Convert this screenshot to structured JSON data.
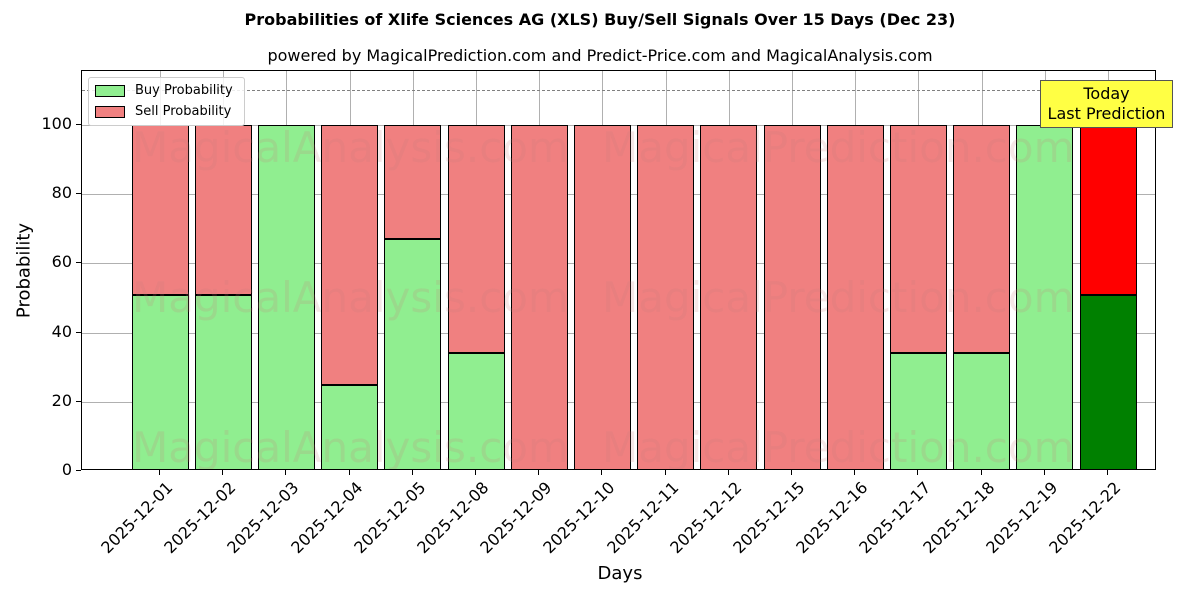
{
  "header": {
    "title": "Probabilities of Xlife Sciences AG (XLS) Buy/Sell Signals Over 15 Days (Dec 23)",
    "subtitle": "powered by MagicalPrediction.com and Predict-Price.com and MagicalAnalysis.com"
  },
  "legend": {
    "buy": "Buy Probability",
    "sell": "Sell Probability"
  },
  "annotation": {
    "line1": "Today",
    "line2": "Last Prediction"
  },
  "watermarks": [
    "MagicalAnalysis.com",
    "MagicalPrediction.com"
  ],
  "colors": {
    "buy": "#90ee90",
    "sell": "#f08080",
    "buy_today": "#008000",
    "sell_today": "#ff0000",
    "annotation_bg": "#ffff44"
  },
  "chart_data": {
    "type": "bar",
    "stacked": true,
    "title": "Probabilities of Xlife Sciences AG (XLS) Buy/Sell Signals Over 15 Days (Dec 23)",
    "subtitle": "powered by MagicalPrediction.com and Predict-Price.com and MagicalAnalysis.com",
    "xlabel": "Days",
    "ylabel": "Probability",
    "ylim": [
      0,
      115
    ],
    "yticks": [
      0,
      20,
      40,
      60,
      80,
      100
    ],
    "grid": true,
    "legend_position": "upper left",
    "reference_line": {
      "y": 110,
      "style": "dashed"
    },
    "categories": [
      "2025-12-01",
      "2025-12-02",
      "2025-12-03",
      "2025-12-04",
      "2025-12-05",
      "2025-12-08",
      "2025-12-09",
      "2025-12-10",
      "2025-12-11",
      "2025-12-12",
      "2025-12-15",
      "2025-12-16",
      "2025-12-17",
      "2025-12-18",
      "2025-12-19",
      "2025-12-22"
    ],
    "series": [
      {
        "name": "Buy Probability",
        "values": [
          51,
          51,
          100,
          25,
          67,
          34,
          0,
          0,
          0,
          0,
          0,
          0,
          34,
          34,
          100,
          51
        ]
      },
      {
        "name": "Sell Probability",
        "values": [
          49,
          49,
          0,
          75,
          33,
          66,
          100,
          100,
          100,
          100,
          100,
          100,
          66,
          66,
          0,
          49
        ]
      }
    ],
    "annotations": [
      {
        "text": "Today\nLast Prediction",
        "x": "2025-12-22"
      }
    ]
  }
}
